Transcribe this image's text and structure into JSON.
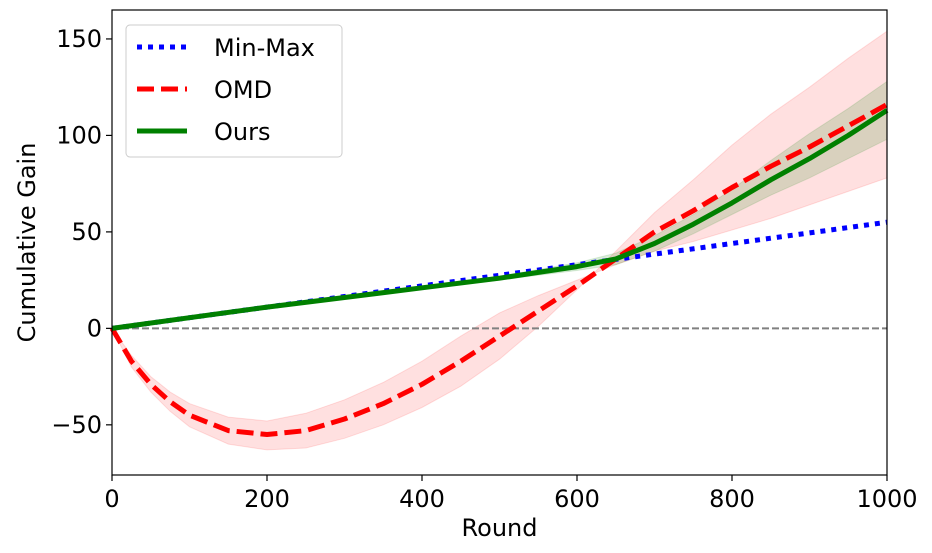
{
  "chart_data": {
    "type": "line",
    "title": "",
    "xlabel": "Round",
    "ylabel": "Cumulative Gain",
    "xlim": [
      0,
      1000
    ],
    "ylim": [
      -76,
      165
    ],
    "xticks": [
      0,
      200,
      400,
      600,
      800,
      1000
    ],
    "xtick_labels": [
      "0",
      "200",
      "400",
      "600",
      "800",
      "1000"
    ],
    "yticks": [
      -50,
      0,
      50,
      100,
      150
    ],
    "ytick_labels": [
      "−50",
      "0",
      "50",
      "100",
      "150"
    ],
    "grid": false,
    "legend_position": "top-left",
    "reference_line": {
      "y": 0,
      "style": "dashed",
      "color": "#808080"
    },
    "series": [
      {
        "name": "Min-Max",
        "color": "#0000ff",
        "style": "dotted",
        "x": [
          0,
          100,
          200,
          300,
          400,
          500,
          600,
          700,
          800,
          900,
          1000
        ],
        "values": [
          0,
          5.5,
          11,
          16.5,
          22,
          27.5,
          33,
          38.5,
          44,
          49.5,
          55
        ]
      },
      {
        "name": "OMD",
        "color": "#ff0000",
        "style": "dashed",
        "x": [
          0,
          25,
          50,
          75,
          100,
          150,
          200,
          250,
          300,
          350,
          400,
          450,
          500,
          550,
          600,
          650,
          700,
          750,
          800,
          850,
          900,
          950,
          1000
        ],
        "values": [
          0,
          -17,
          -29,
          -38,
          -45,
          -53,
          -55,
          -53,
          -47,
          -39,
          -29,
          -17,
          -4,
          9,
          22,
          36,
          50,
          61,
          73,
          84,
          94,
          105,
          116
        ],
        "band_lower": [
          0,
          -14,
          -25,
          -33,
          -39,
          -46,
          -48,
          -44,
          -37,
          -28,
          -17,
          -4,
          8,
          17,
          25,
          33,
          40,
          45,
          51,
          57,
          64,
          71,
          78
        ],
        "band_upper": [
          0,
          -20,
          -33,
          -43,
          -51,
          -60,
          -63,
          -62,
          -57,
          -50,
          -41,
          -30,
          -16,
          1,
          20,
          40,
          60,
          77,
          95,
          111,
          125,
          140,
          154
        ]
      },
      {
        "name": "Ours",
        "color": "#008000",
        "style": "solid",
        "x": [
          0,
          100,
          200,
          300,
          400,
          500,
          550,
          600,
          650,
          700,
          750,
          800,
          850,
          900,
          950,
          1000
        ],
        "values": [
          0,
          5.5,
          11,
          16,
          21,
          26,
          29,
          32,
          36,
          44,
          54,
          65,
          77,
          88,
          100,
          113
        ],
        "band_lower": [
          0,
          5,
          10.5,
          15.5,
          20.5,
          25,
          27.5,
          30,
          33,
          40,
          49,
          59,
          69,
          78,
          88,
          98
        ],
        "band_upper": [
          0,
          6,
          11.5,
          16.5,
          21.5,
          27,
          30.5,
          34,
          39,
          48,
          59,
          72,
          87,
          101,
          114,
          128
        ]
      }
    ]
  }
}
